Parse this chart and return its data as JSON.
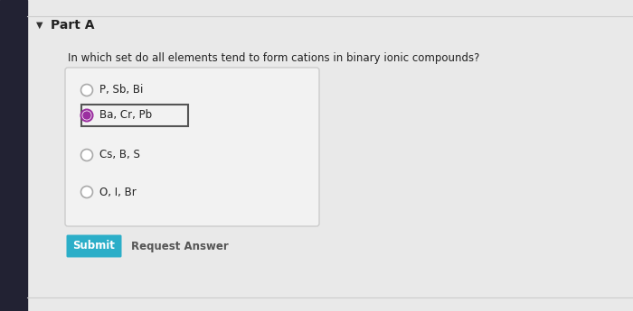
{
  "bg_outer": "#1a1a2e",
  "bg_main": "#e9e9e9",
  "title": "Part A",
  "question": "In which set do all elements tend to form cations in binary ionic compounds?",
  "options": [
    "P, Sb, Bi",
    "Ba, Cr, Pb",
    "Cs, B, S",
    "O, I, Br"
  ],
  "selected_index": 1,
  "selected_radio_fill": "#9b2fa0",
  "selected_radio_border": "#9b2fa0",
  "unselected_radio_border": "#aaaaaa",
  "selected_box_border": "#555555",
  "options_box_border": "#cccccc",
  "options_box_fill": "#f2f2f2",
  "submit_bg": "#2baec8",
  "submit_text_color": "#ffffff",
  "submit_text": "Submit",
  "request_text": "Request Answer",
  "request_text_color": "#555555",
  "title_color": "#222222",
  "question_color": "#222222",
  "option_text_color": "#222222",
  "arrow_color": "#333333",
  "sidebar_color": "#222233",
  "topline_color": "#cccccc"
}
